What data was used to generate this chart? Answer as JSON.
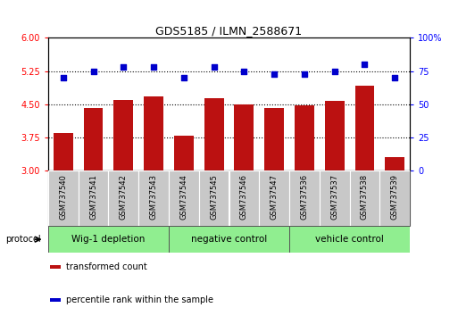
{
  "title": "GDS5185 / ILMN_2588671",
  "samples": [
    "GSM737540",
    "GSM737541",
    "GSM737542",
    "GSM737543",
    "GSM737544",
    "GSM737545",
    "GSM737546",
    "GSM737547",
    "GSM737536",
    "GSM737537",
    "GSM737538",
    "GSM737539"
  ],
  "red_values": [
    3.85,
    4.42,
    4.6,
    4.68,
    3.8,
    4.63,
    4.5,
    4.42,
    4.47,
    4.58,
    4.92,
    3.3
  ],
  "blue_values": [
    70,
    75,
    78,
    78,
    70,
    78,
    75,
    73,
    73,
    75,
    80,
    70
  ],
  "ylim_left": [
    3,
    6
  ],
  "ylim_right": [
    0,
    100
  ],
  "yticks_left": [
    3,
    3.75,
    4.5,
    5.25,
    6
  ],
  "yticks_right": [
    0,
    25,
    50,
    75,
    100
  ],
  "groups": [
    {
      "label": "Wig-1 depletion",
      "start": 0,
      "end": 4
    },
    {
      "label": "negative control",
      "start": 4,
      "end": 8
    },
    {
      "label": "vehicle control",
      "start": 8,
      "end": 12
    }
  ],
  "group_light_green": "#90EE90",
  "bar_color": "#BB1111",
  "dot_color": "#0000CC",
  "sample_box_color": "#C8C8C8",
  "sample_box_edge": "#888888",
  "protocol_label": "protocol",
  "legend_items": [
    {
      "color": "#BB1111",
      "label": "transformed count"
    },
    {
      "color": "#0000CC",
      "label": "percentile rank within the sample"
    }
  ],
  "bar_width": 0.65,
  "hlines": [
    3.75,
    4.5,
    5.25
  ],
  "title_fontsize": 9,
  "tick_fontsize": 7,
  "sample_fontsize": 6,
  "group_fontsize": 7.5,
  "legend_fontsize": 7
}
